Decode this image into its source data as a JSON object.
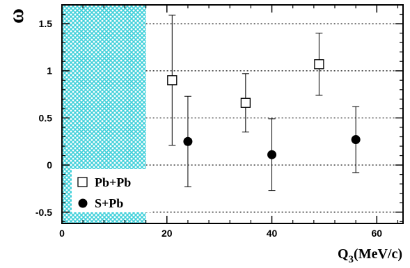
{
  "chart_data": {
    "type": "scatter",
    "xlabel": "Q",
    "xlabel_sub": "3",
    "xlabel_unit": "(MeV/c)",
    "ylabel": "ω",
    "xlim": [
      0,
      65
    ],
    "ylim": [
      -0.62,
      1.7
    ],
    "xticks": [
      0,
      20,
      40,
      60
    ],
    "xtick_labels": [
      "0",
      "20",
      "40",
      "60"
    ],
    "yticks": [
      -0.5,
      0,
      0.5,
      1,
      1.5
    ],
    "ytick_labels": [
      "-0.5",
      "0",
      "0.5",
      "1",
      "1.5"
    ],
    "grid": "horizontal dotted",
    "legend_position": "bottom-left",
    "shaded_region": {
      "x": [
        0,
        16
      ],
      "color": "#4fd8e0"
    },
    "series": [
      {
        "name": "Pb+Pb",
        "marker": "open-square",
        "points": [
          {
            "x": 21,
            "y": 0.9,
            "lo": 0.21,
            "hi": 1.59
          },
          {
            "x": 35,
            "y": 0.66,
            "lo": 0.35,
            "hi": 0.97
          },
          {
            "x": 49,
            "y": 1.07,
            "lo": 0.74,
            "hi": 1.4
          }
        ]
      },
      {
        "name": "S+Pb",
        "marker": "filled-circle",
        "points": [
          {
            "x": 24,
            "y": 0.25,
            "lo": -0.23,
            "hi": 0.73
          },
          {
            "x": 40,
            "y": 0.11,
            "lo": -0.27,
            "hi": 0.49
          },
          {
            "x": 56,
            "y": 0.27,
            "lo": -0.08,
            "hi": 0.62
          }
        ]
      }
    ]
  }
}
